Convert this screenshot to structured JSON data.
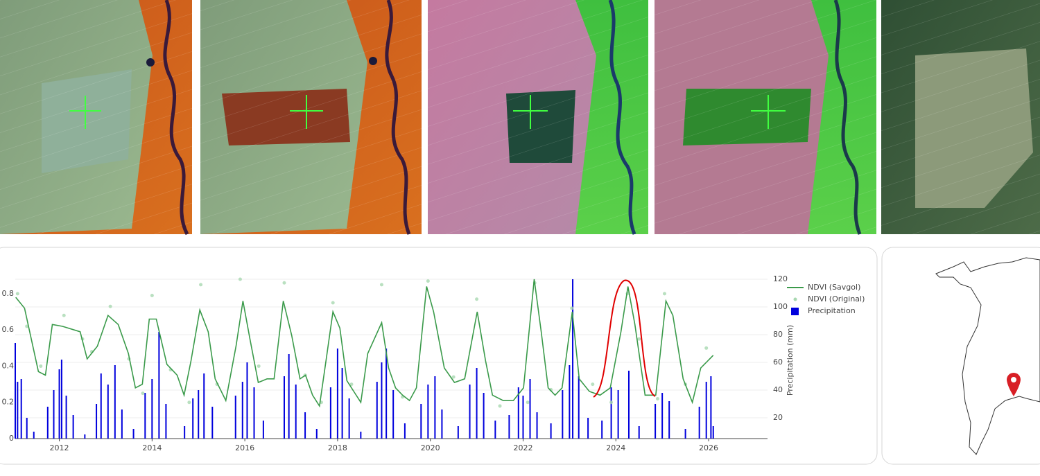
{
  "chart_data": {
    "type": "line",
    "y2label": "Precipitation (mm)",
    "legend": "right",
    "grid": true,
    "xlim": [
      2011.05,
      2027.27
    ],
    "xticks": [
      2012,
      2014,
      2016,
      2018,
      2020,
      2022,
      2024,
      2026
    ],
    "ylim": [
      0,
      0.88
    ],
    "yticks": [
      0,
      0.2,
      0.4,
      0.6,
      0.8
    ],
    "y2lim": [
      5,
      120
    ],
    "y2ticks": [
      20,
      40,
      60,
      80,
      100,
      120
    ],
    "series": [
      {
        "name": "NDVI (Savgol)",
        "kind": "line",
        "color": "#3a9a4a",
        "x": [
          2011.06,
          2011.25,
          2011.55,
          2011.7,
          2011.85,
          2012.07,
          2012.45,
          2012.6,
          2012.82,
          2013.05,
          2013.27,
          2013.49,
          2013.64,
          2013.79,
          2013.94,
          2014.09,
          2014.32,
          2014.54,
          2014.69,
          2014.84,
          2015.03,
          2015.21,
          2015.36,
          2015.59,
          2015.81,
          2015.96,
          2016.11,
          2016.29,
          2016.48,
          2016.63,
          2016.83,
          2017.01,
          2017.19,
          2017.31,
          2017.46,
          2017.61,
          2017.75,
          2017.9,
          2018.05,
          2018.2,
          2018.35,
          2018.5,
          2018.65,
          2018.95,
          2019.1,
          2019.25,
          2019.4,
          2019.55,
          2019.7,
          2019.92,
          2020.07,
          2020.3,
          2020.52,
          2020.74,
          2021.01,
          2021.19,
          2021.34,
          2021.57,
          2021.79,
          2022.01,
          2022.24,
          2022.39,
          2022.54,
          2022.69,
          2022.84,
          2023.06,
          2023.21,
          2023.43,
          2023.66,
          2023.88,
          2024.11,
          2024.26,
          2024.41,
          2024.63,
          2024.86,
          2025.08,
          2025.23,
          2025.45,
          2025.65,
          2025.83,
          2026.1
        ],
        "values": [
          0.78,
          0.72,
          0.37,
          0.35,
          0.63,
          0.62,
          0.59,
          0.44,
          0.51,
          0.68,
          0.63,
          0.47,
          0.28,
          0.3,
          0.66,
          0.66,
          0.41,
          0.35,
          0.24,
          0.43,
          0.71,
          0.59,
          0.33,
          0.21,
          0.51,
          0.76,
          0.55,
          0.31,
          0.33,
          0.33,
          0.76,
          0.57,
          0.33,
          0.35,
          0.24,
          0.18,
          0.43,
          0.7,
          0.61,
          0.32,
          0.26,
          0.2,
          0.47,
          0.64,
          0.39,
          0.28,
          0.24,
          0.21,
          0.28,
          0.84,
          0.7,
          0.39,
          0.31,
          0.33,
          0.7,
          0.43,
          0.24,
          0.21,
          0.21,
          0.28,
          0.88,
          0.59,
          0.28,
          0.24,
          0.28,
          0.7,
          0.33,
          0.26,
          0.24,
          0.28,
          0.59,
          0.84,
          0.63,
          0.24,
          0.24,
          0.76,
          0.68,
          0.33,
          0.2,
          0.39,
          0.46
        ]
      },
      {
        "name": "NDVI (Original)",
        "kind": "scatter",
        "color": "#a8d8b0",
        "x": [
          2011.1,
          2011.3,
          2011.6,
          2012.1,
          2012.5,
          2012.7,
          2013.1,
          2013.5,
          2013.8,
          2014.0,
          2014.4,
          2014.8,
          2015.05,
          2015.4,
          2015.9,
          2016.3,
          2016.85,
          2017.3,
          2017.65,
          2017.9,
          2018.3,
          2018.95,
          2019.4,
          2019.95,
          2020.5,
          2021.0,
          2021.5,
          2022.1,
          2022.25,
          2022.6,
          2023.05,
          2023.5,
          2023.9,
          2024.25,
          2024.5,
          2024.9,
          2025.05,
          2025.5,
          2025.95
        ],
        "values": [
          0.8,
          0.62,
          0.4,
          0.68,
          0.55,
          0.48,
          0.73,
          0.44,
          0.25,
          0.79,
          0.38,
          0.2,
          0.85,
          0.3,
          0.88,
          0.4,
          0.86,
          0.35,
          0.2,
          0.75,
          0.3,
          0.85,
          0.23,
          0.87,
          0.34,
          0.77,
          0.18,
          0.2,
          0.86,
          0.27,
          0.72,
          0.3,
          0.2,
          0.8,
          0.55,
          0.22,
          0.8,
          0.3,
          0.5
        ]
      },
      {
        "name": "Precipitation",
        "kind": "bar",
        "axis": "y2",
        "color": "#0000dd",
        "x": [
          2011.05,
          2011.1,
          2011.18,
          2011.3,
          2011.45,
          2011.75,
          2011.88,
          2012.0,
          2012.05,
          2012.15,
          2012.3,
          2012.55,
          2012.8,
          2012.9,
          2013.05,
          2013.2,
          2013.35,
          2013.6,
          2013.85,
          2014.0,
          2014.15,
          2014.3,
          2014.7,
          2014.88,
          2015.0,
          2015.12,
          2015.3,
          2015.8,
          2015.95,
          2016.05,
          2016.2,
          2016.4,
          2016.85,
          2016.95,
          2017.1,
          2017.3,
          2017.55,
          2017.85,
          2018.0,
          2018.1,
          2018.25,
          2018.5,
          2018.85,
          2018.95,
          2019.05,
          2019.2,
          2019.45,
          2019.8,
          2019.95,
          2020.1,
          2020.25,
          2020.6,
          2020.85,
          2021.0,
          2021.15,
          2021.4,
          2021.7,
          2021.9,
          2022.0,
          2022.15,
          2022.3,
          2022.6,
          2022.85,
          2023.0,
          2023.07,
          2023.2,
          2023.4,
          2023.7,
          2023.9,
          2024.05,
          2024.28,
          2024.5,
          2024.85,
          2025.0,
          2025.15,
          2025.5,
          2025.8,
          2025.95,
          2026.05,
          2026.1
        ],
        "values": [
          74,
          46,
          48,
          20,
          10,
          28,
          40,
          55,
          62,
          36,
          22,
          8,
          30,
          52,
          44,
          58,
          26,
          12,
          38,
          48,
          82,
          30,
          14,
          34,
          40,
          52,
          28,
          36,
          46,
          60,
          42,
          18,
          50,
          66,
          44,
          24,
          12,
          42,
          70,
          56,
          34,
          10,
          46,
          60,
          70,
          40,
          16,
          30,
          44,
          50,
          26,
          14,
          44,
          56,
          38,
          18,
          22,
          42,
          36,
          48,
          24,
          16,
          40,
          58,
          120,
          50,
          20,
          18,
          42,
          40,
          54,
          14,
          30,
          38,
          32,
          12,
          28,
          46,
          50,
          14
        ]
      }
    ]
  }
}
